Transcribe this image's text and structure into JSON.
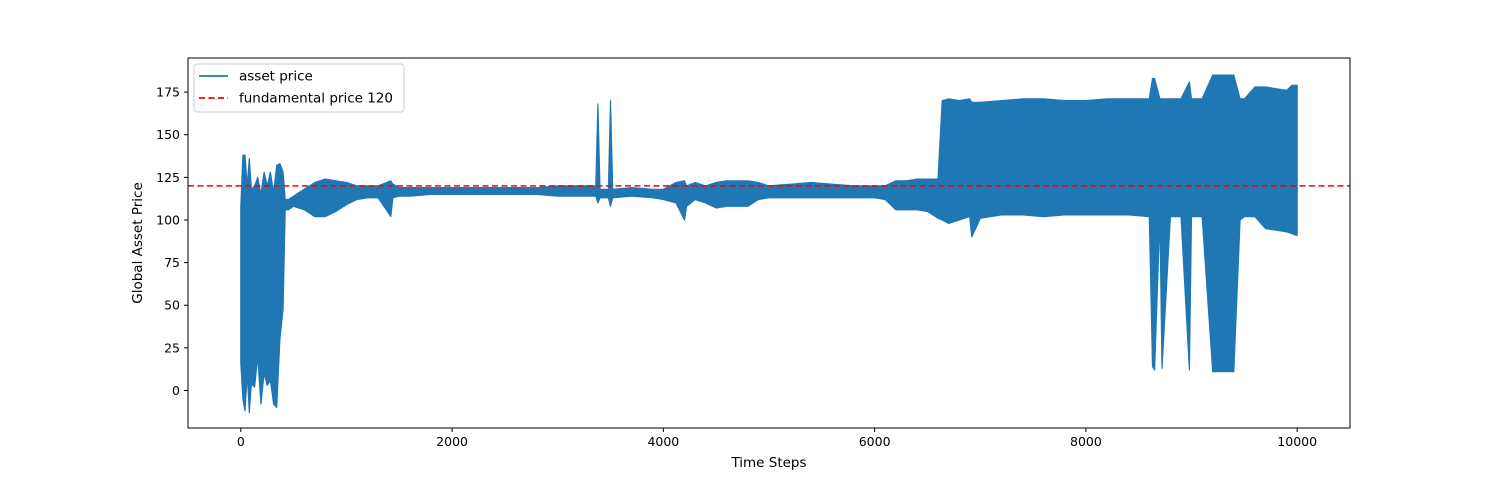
{
  "chart_data": {
    "type": "line",
    "title": "",
    "xlabel": "Time Steps",
    "ylabel": "Global Asset Price",
    "xlim": [
      -500,
      10500
    ],
    "ylim": [
      -22,
      195
    ],
    "xticks": [
      0,
      2000,
      4000,
      6000,
      8000,
      10000
    ],
    "yticks": [
      0,
      25,
      50,
      75,
      100,
      125,
      150,
      175
    ],
    "grid": false,
    "legend_position": "top-left",
    "series": [
      {
        "name": "asset price",
        "color": "#1f77b4",
        "style": "solid",
        "envelope": {
          "x": [
            0,
            20,
            40,
            60,
            80,
            100,
            130,
            160,
            190,
            220,
            250,
            280,
            310,
            340,
            370,
            400,
            420,
            450,
            500,
            600,
            700,
            800,
            900,
            1000,
            1100,
            1200,
            1300,
            1420,
            1440,
            1500,
            1600,
            1800,
            2000,
            2200,
            2500,
            2800,
            3000,
            3200,
            3360,
            3380,
            3400,
            3480,
            3500,
            3520,
            3700,
            3900,
            4000,
            4120,
            4200,
            4220,
            4300,
            4400,
            4500,
            4600,
            4700,
            4800,
            4900,
            5000,
            5200,
            5400,
            5600,
            5800,
            6000,
            6100,
            6200,
            6300,
            6400,
            6500,
            6600,
            6640,
            6700,
            6800,
            6900,
            6920,
            7000,
            7200,
            7400,
            7600,
            7800,
            8000,
            8200,
            8400,
            8600,
            8630,
            8650,
            8700,
            8720,
            8800,
            8900,
            8980,
            9000,
            9100,
            9200,
            9300,
            9400,
            9460,
            9500,
            9600,
            9700,
            9800,
            9900,
            9950,
            9990,
            10000
          ],
          "upper": [
            108,
            138,
            138,
            120,
            136,
            118,
            120,
            125,
            115,
            128,
            120,
            128,
            116,
            132,
            133,
            128,
            112,
            112,
            114,
            118,
            122,
            124,
            123,
            122,
            120,
            120,
            120,
            123,
            121,
            119,
            119,
            119,
            119,
            119,
            119,
            119,
            120,
            120,
            120,
            168,
            118,
            118,
            170,
            118,
            119,
            118,
            118,
            122,
            123,
            120,
            122,
            120,
            122,
            123,
            123,
            123,
            122,
            120,
            121,
            122,
            121,
            120,
            120,
            120,
            123,
            123,
            124,
            124,
            124,
            170,
            171,
            170,
            171,
            169,
            169,
            170,
            171,
            171,
            170,
            170,
            171,
            171,
            171,
            183,
            183,
            171,
            171,
            171,
            171,
            181,
            171,
            171,
            185,
            185,
            185,
            171,
            171,
            178,
            178,
            177,
            176,
            179,
            179,
            179
          ],
          "lower": [
            16,
            -5,
            -12,
            10,
            -13,
            4,
            2,
            20,
            -8,
            10,
            3,
            6,
            -8,
            -10,
            30,
            48,
            106,
            106,
            108,
            106,
            102,
            102,
            105,
            109,
            112,
            113,
            113,
            102,
            113,
            114,
            114,
            115,
            115,
            115,
            115,
            115,
            114,
            114,
            114,
            110,
            113,
            113,
            108,
            113,
            114,
            113,
            112,
            110,
            100,
            108,
            112,
            110,
            107,
            108,
            108,
            108,
            112,
            113,
            113,
            113,
            113,
            113,
            113,
            112,
            106,
            106,
            106,
            105,
            101,
            100,
            98,
            100,
            102,
            90,
            101,
            103,
            103,
            102,
            103,
            103,
            103,
            103,
            102,
            14,
            12,
            102,
            13,
            102,
            102,
            12,
            102,
            102,
            11,
            11,
            11,
            100,
            102,
            102,
            95,
            94,
            93,
            92,
            91,
            91
          ]
        }
      },
      {
        "name": "fundamental price 120",
        "color": "#ff0000",
        "style": "dashed",
        "y": 120
      }
    ]
  }
}
